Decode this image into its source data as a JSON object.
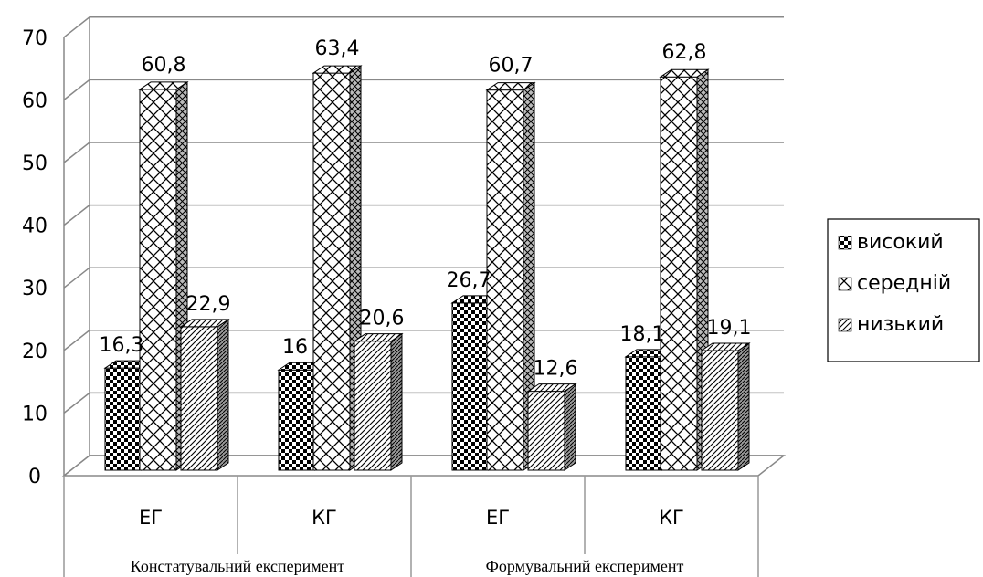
{
  "chart_data": {
    "type": "bar",
    "three_d": true,
    "categories": [
      "ЕГ",
      "КГ",
      "ЕГ",
      "КГ"
    ],
    "groups": [
      {
        "label": "Констатувальний експеримент",
        "categories": [
          0,
          1
        ]
      },
      {
        "label": "Формувальний експеримент",
        "categories": [
          2,
          3
        ]
      }
    ],
    "series": [
      {
        "name": "високий",
        "values": [
          16.3,
          16,
          26.7,
          18.1
        ],
        "labels": [
          "16,3",
          "16",
          "26,7",
          "18,1"
        ]
      },
      {
        "name": "середній",
        "values": [
          60.8,
          63.4,
          60.7,
          62.8
        ],
        "labels": [
          "60,8",
          "63,4",
          "60,7",
          "62,8"
        ]
      },
      {
        "name": "низький",
        "values": [
          22.9,
          20.6,
          12.6,
          19.1
        ],
        "labels": [
          "22,9",
          "20,6",
          "12,6",
          "19,1"
        ]
      }
    ],
    "y_ticks": [
      "0",
      "10",
      "20",
      "30",
      "40",
      "50",
      "60",
      "70"
    ],
    "ylim": [
      0,
      70
    ],
    "grid": true,
    "legend_position": "right"
  }
}
